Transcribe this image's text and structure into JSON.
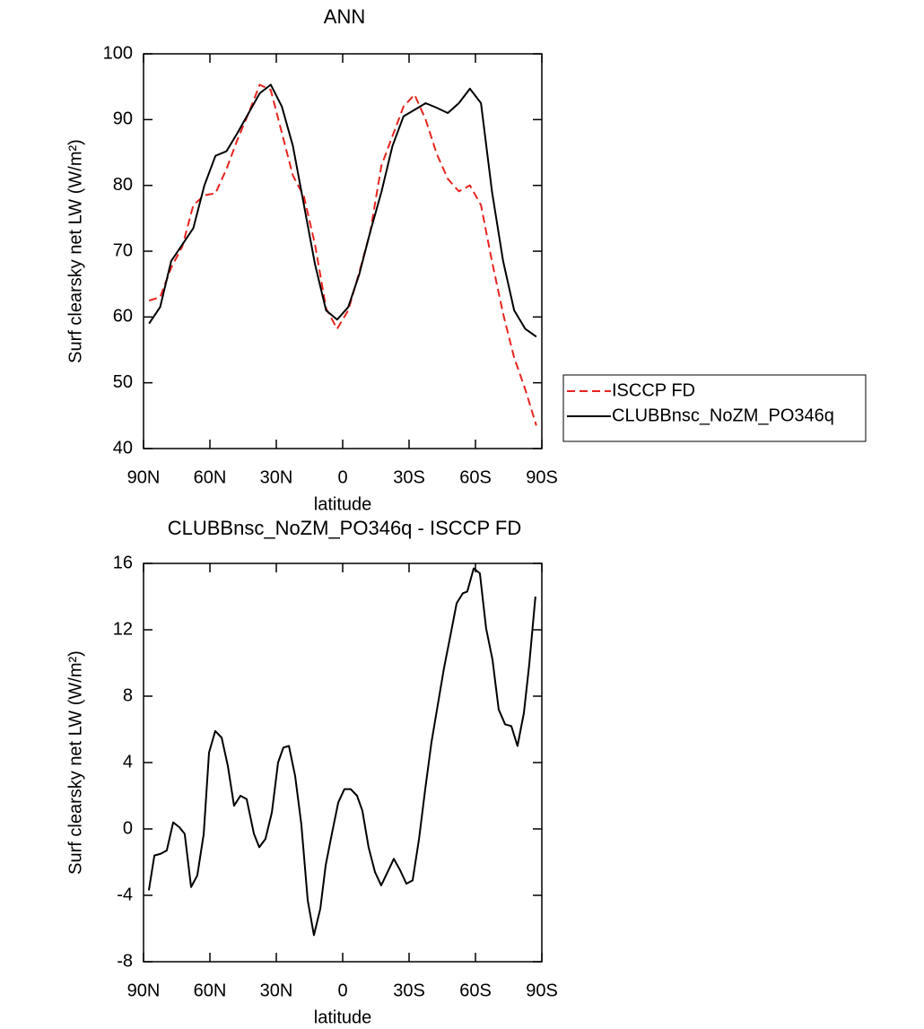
{
  "chart_data": [
    {
      "type": "line",
      "title": "ANN",
      "xlabel": "latitude",
      "ylabel": "Surf clearsky net LW (W/m²)",
      "x": [
        87.5,
        82.5,
        77.5,
        72.5,
        67.5,
        62.5,
        57.5,
        52.5,
        47.5,
        42.5,
        37.5,
        32.5,
        27.5,
        22.5,
        17.5,
        12.5,
        7.5,
        2.5,
        -2.5,
        -7.5,
        -12.5,
        -17.5,
        -22.5,
        -27.5,
        -32.5,
        -37.5,
        -42.5,
        -47.5,
        -52.5,
        -57.5,
        -62.5,
        -67.5,
        -72.5,
        -77.5,
        -82.5,
        -87.5
      ],
      "series": [
        {
          "name": "ISCCP FD",
          "color": "#e8231e",
          "linestyle": "dashed",
          "values": [
            62.5,
            63,
            67.5,
            70.7,
            77,
            78.5,
            78.8,
            82.5,
            87,
            91,
            95.3,
            94.5,
            88,
            81.5,
            78.3,
            71,
            61.3,
            58.2,
            61,
            66.8,
            73,
            83,
            87.5,
            92,
            93.8,
            90,
            84.8,
            81,
            79.1,
            80,
            77,
            68.4,
            60.5,
            53.8,
            49,
            43.5
          ]
        },
        {
          "name": "CLUBBnsc_NoZM_PO346q",
          "color": "#000000",
          "linestyle": "solid",
          "values": [
            59,
            61.5,
            68.5,
            71,
            73.5,
            80,
            84.5,
            85.2,
            88,
            91,
            94,
            95.3,
            92,
            86,
            77,
            68,
            61,
            59.6,
            61.5,
            66.5,
            73,
            79,
            86,
            90.5,
            91.5,
            92.5,
            91.8,
            91,
            92.5,
            94.7,
            92.5,
            79,
            68.5,
            61,
            58.2,
            57
          ]
        }
      ],
      "xlim": [
        90,
        -90
      ],
      "xticks": [
        {
          "value": 90,
          "label": "90N"
        },
        {
          "value": 60,
          "label": "60N"
        },
        {
          "value": 30,
          "label": "30N"
        },
        0,
        {
          "value": -30,
          "label": "30S"
        },
        {
          "value": -60,
          "label": "60S"
        },
        {
          "value": -90,
          "label": "90S"
        }
      ],
      "ylim": [
        40,
        100
      ],
      "yticks": [
        40,
        50,
        60,
        70,
        80,
        90,
        100
      ],
      "legend": "right",
      "grid": false
    },
    {
      "type": "line",
      "title": "CLUBBnsc_NoZM_PO346q - ISCCP FD",
      "xlabel": "latitude",
      "ylabel": "Surf clearsky net LW (W/m²)",
      "x": [
        87.6,
        85.1,
        82.3,
        79.5,
        76.6,
        73.8,
        71.4,
        68.5,
        65.7,
        62.8,
        60.4,
        57.6,
        54.7,
        51.9,
        49.1,
        46.2,
        43.4,
        40.1,
        37.7,
        34.9,
        32.0,
        29.2,
        26.8,
        24.3,
        21.5,
        18.7,
        15.8,
        13.0,
        10.1,
        7.7,
        4.9,
        2.0,
        -0.8,
        -3.6,
        -6.5,
        -8.9,
        -11.7,
        -14.6,
        -17.4,
        -20.3,
        -23.1,
        -26.0,
        -28.8,
        -31.6,
        -34.5,
        -37.3,
        -40.1,
        -43.0,
        -45.8,
        -48.6,
        -51.5,
        -54.3,
        -56.3,
        -59.2,
        -62.0,
        -64.8,
        -67.7,
        -70.5,
        -73.4,
        -76.2,
        -79.0,
        -81.9,
        -84.3,
        -87.1
      ],
      "values": [
        -3.7,
        -1.6,
        -1.5,
        -1.3,
        0.4,
        0.1,
        -0.3,
        -3.5,
        -2.8,
        -0.3,
        4.6,
        5.9,
        5.5,
        3.8,
        1.4,
        2,
        1.8,
        -0.3,
        -1.1,
        -0.6,
        1,
        4,
        4.9,
        5,
        3.2,
        0.3,
        -4.3,
        -6.4,
        -4.8,
        -2.2,
        -0.3,
        1.6,
        2.4,
        2.4,
        2,
        1.1,
        -1.1,
        -2.6,
        -3.4,
        -2.6,
        -1.8,
        -2.5,
        -3.3,
        -3.1,
        -0.6,
        2.4,
        5.2,
        7.5,
        9.7,
        11.6,
        13.6,
        14.2,
        14.3,
        15.7,
        15.4,
        12.1,
        10.2,
        7.2,
        6.3,
        6.2,
        5,
        7,
        9.9,
        14
      ],
      "color": "#000000",
      "xlim": [
        90,
        -90
      ],
      "xticks": [
        {
          "value": 90,
          "label": "90N"
        },
        {
          "value": 60,
          "label": "60N"
        },
        {
          "value": 30,
          "label": "30N"
        },
        0,
        {
          "value": -30,
          "label": "30S"
        },
        {
          "value": -60,
          "label": "60S"
        },
        {
          "value": -90,
          "label": "90S"
        }
      ],
      "ylim": [
        -8,
        16
      ],
      "yticks": [
        -8,
        -4,
        0,
        4,
        8,
        12,
        16
      ],
      "grid": false
    }
  ]
}
